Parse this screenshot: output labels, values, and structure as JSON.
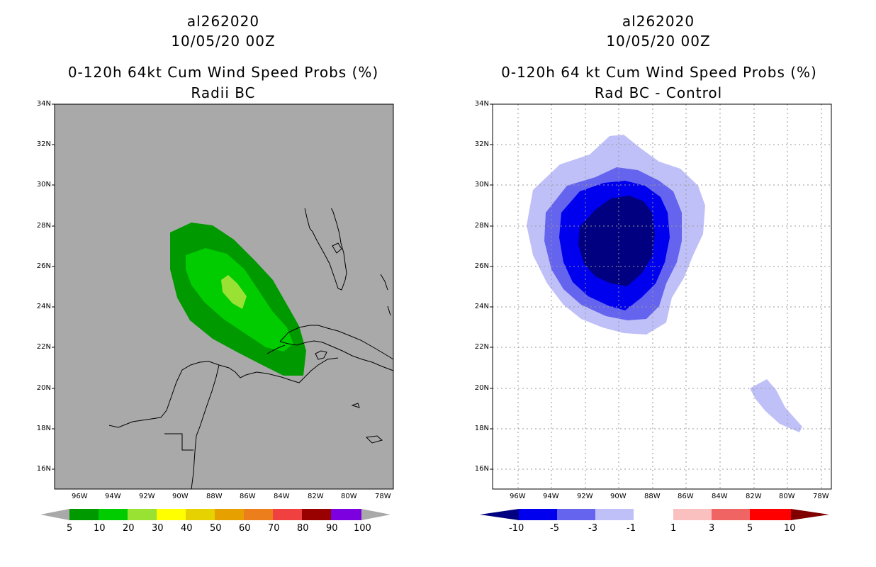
{
  "left": {
    "storm_id": "al262020",
    "datetime": "10/05/20 00Z",
    "title": "0-120h 64kt Cum Wind Speed Probs (%)",
    "subtitle": "Radii BC",
    "colorbar_labels": [
      "5",
      "10",
      "20",
      "30",
      "40",
      "50",
      "60",
      "70",
      "80",
      "90",
      "100"
    ],
    "colors": [
      "#009900",
      "#00cc00",
      "#99e233",
      "#ffff00",
      "#e6d200",
      "#e6a000",
      "#ec7f1c",
      "#f04040",
      "#990000",
      "#7c00e0"
    ],
    "ocean_color": "#a9a9a9"
  },
  "right": {
    "storm_id": "al262020",
    "datetime": "10/05/20 00Z",
    "title": "0-120h 64 kt Cum Wind Speed Probs (%)",
    "subtitle": "Rad BC - Control",
    "colorbar_labels": [
      "-10",
      "-5",
      "-3",
      "-1",
      "1",
      "3",
      "5",
      "10"
    ],
    "colors": [
      "#000080",
      "#0000ee",
      "#6464ee",
      "#c0c0f8",
      "#ffffff",
      "#fac0c0",
      "#f06464",
      "#ff0000",
      "#cc0000",
      "#800000"
    ]
  },
  "axes": {
    "lat_labels": [
      "34N",
      "32N",
      "30N",
      "28N",
      "26N",
      "24N",
      "22N",
      "20N",
      "18N",
      "16N"
    ],
    "lon_labels": [
      "96W",
      "94W",
      "92W",
      "90W",
      "88W",
      "86W",
      "84W",
      "82W",
      "80W",
      "78W"
    ]
  }
}
